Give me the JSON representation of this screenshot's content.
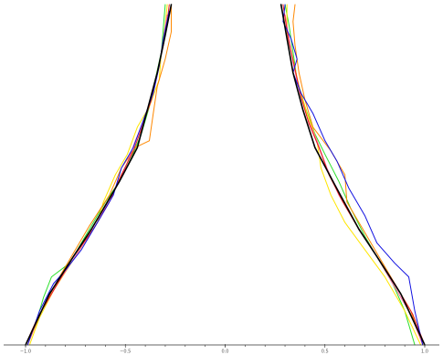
{
  "chart_data": {
    "type": "line",
    "title": "",
    "xlabel": "",
    "ylabel": "",
    "xlim": [
      -1.0,
      1.0
    ],
    "ylim": [
      0,
      1
    ],
    "y_axis_visible": false,
    "grid": false,
    "legend": "none",
    "x_ticks": [
      {
        "value": -1.0,
        "label": "−1.0"
      },
      {
        "value": -0.5,
        "label": "−0.5"
      },
      {
        "value": 0.0,
        "label": "0.0"
      },
      {
        "value": 0.5,
        "label": "0.5"
      },
      {
        "value": 1.0,
        "label": "1.0"
      }
    ],
    "series": [
      {
        "color": "#2ee02e",
        "left": [
          [
            -0.99,
            0
          ],
          [
            -0.95,
            0.06
          ],
          [
            -0.91,
            0.14
          ],
          [
            -0.87,
            0.2
          ],
          [
            -0.78,
            0.24
          ],
          [
            -0.72,
            0.3
          ],
          [
            -0.66,
            0.36
          ],
          [
            -0.6,
            0.42
          ],
          [
            -0.53,
            0.48
          ],
          [
            -0.47,
            0.55
          ],
          [
            -0.42,
            0.62
          ],
          [
            -0.38,
            0.7
          ],
          [
            -0.35,
            0.78
          ],
          [
            -0.32,
            0.86
          ],
          [
            -0.31,
            0.93
          ],
          [
            -0.3,
            1.0
          ]
        ],
        "right": [
          [
            0.95,
            0
          ],
          [
            0.9,
            0.1
          ],
          [
            0.84,
            0.18
          ],
          [
            0.78,
            0.24
          ],
          [
            0.7,
            0.32
          ],
          [
            0.63,
            0.4
          ],
          [
            0.57,
            0.48
          ],
          [
            0.5,
            0.56
          ],
          [
            0.45,
            0.62
          ],
          [
            0.4,
            0.7
          ],
          [
            0.36,
            0.78
          ],
          [
            0.34,
            0.86
          ],
          [
            0.32,
            0.94
          ],
          [
            0.3,
            1.0
          ]
        ]
      },
      {
        "color": "#ffe600",
        "left": [
          [
            -0.98,
            0
          ],
          [
            -0.93,
            0.08
          ],
          [
            -0.86,
            0.16
          ],
          [
            -0.75,
            0.26
          ],
          [
            -0.64,
            0.36
          ],
          [
            -0.61,
            0.42
          ],
          [
            -0.55,
            0.5
          ],
          [
            -0.49,
            0.56
          ],
          [
            -0.44,
            0.64
          ],
          [
            -0.38,
            0.7
          ],
          [
            -0.33,
            0.78
          ],
          [
            -0.32,
            0.86
          ],
          [
            -0.3,
            0.94
          ],
          [
            -0.29,
            1.0
          ]
        ],
        "right": [
          [
            0.98,
            0
          ],
          [
            0.9,
            0.1
          ],
          [
            0.8,
            0.2
          ],
          [
            0.7,
            0.28
          ],
          [
            0.6,
            0.36
          ],
          [
            0.53,
            0.44
          ],
          [
            0.48,
            0.52
          ],
          [
            0.46,
            0.6
          ],
          [
            0.41,
            0.68
          ],
          [
            0.37,
            0.76
          ],
          [
            0.34,
            0.84
          ],
          [
            0.31,
            0.92
          ],
          [
            0.31,
            1.0
          ]
        ]
      },
      {
        "color": "#ff8800",
        "left": [
          [
            -0.99,
            0
          ],
          [
            -0.92,
            0.1
          ],
          [
            -0.84,
            0.19
          ],
          [
            -0.76,
            0.27
          ],
          [
            -0.68,
            0.35
          ],
          [
            -0.58,
            0.44
          ],
          [
            -0.52,
            0.52
          ],
          [
            -0.45,
            0.58
          ],
          [
            -0.38,
            0.6
          ],
          [
            -0.36,
            0.68
          ],
          [
            -0.34,
            0.76
          ],
          [
            -0.3,
            0.84
          ],
          [
            -0.27,
            0.92
          ],
          [
            -0.27,
            1.0
          ]
        ],
        "right": [
          [
            0.99,
            0
          ],
          [
            0.93,
            0.1
          ],
          [
            0.85,
            0.18
          ],
          [
            0.77,
            0.26
          ],
          [
            0.69,
            0.34
          ],
          [
            0.61,
            0.42
          ],
          [
            0.6,
            0.5
          ],
          [
            0.53,
            0.57
          ],
          [
            0.44,
            0.64
          ],
          [
            0.4,
            0.72
          ],
          [
            0.37,
            0.8
          ],
          [
            0.35,
            0.88
          ],
          [
            0.34,
            0.95
          ],
          [
            0.35,
            1.0
          ]
        ]
      },
      {
        "color": "#ff66a0",
        "left": [
          [
            -0.99,
            0
          ],
          [
            -0.93,
            0.09
          ],
          [
            -0.84,
            0.18
          ],
          [
            -0.74,
            0.27
          ],
          [
            -0.64,
            0.36
          ],
          [
            -0.57,
            0.44
          ],
          [
            -0.5,
            0.52
          ],
          [
            -0.45,
            0.6
          ],
          [
            -0.4,
            0.67
          ],
          [
            -0.36,
            0.74
          ],
          [
            -0.33,
            0.82
          ],
          [
            -0.31,
            0.9
          ],
          [
            -0.29,
            0.97
          ]
        ],
        "right": [
          [
            0.99,
            0
          ],
          [
            0.93,
            0.09
          ],
          [
            0.84,
            0.18
          ],
          [
            0.75,
            0.27
          ],
          [
            0.65,
            0.36
          ],
          [
            0.57,
            0.44
          ],
          [
            0.51,
            0.52
          ],
          [
            0.46,
            0.6
          ],
          [
            0.41,
            0.67
          ],
          [
            0.37,
            0.75
          ],
          [
            0.34,
            0.83
          ],
          [
            0.32,
            0.9
          ],
          [
            0.3,
            0.97
          ]
        ]
      },
      {
        "color": "#e81e1e",
        "left": [
          [
            -1.0,
            0
          ],
          [
            -0.94,
            0.08
          ],
          [
            -0.85,
            0.17
          ],
          [
            -0.76,
            0.26
          ],
          [
            -0.66,
            0.34
          ],
          [
            -0.58,
            0.42
          ],
          [
            -0.52,
            0.5
          ],
          [
            -0.46,
            0.57
          ],
          [
            -0.41,
            0.65
          ],
          [
            -0.37,
            0.72
          ],
          [
            -0.34,
            0.8
          ],
          [
            -0.31,
            0.88
          ],
          [
            -0.29,
            0.95
          ],
          [
            -0.28,
            1.0
          ]
        ],
        "right": [
          [
            1.0,
            0
          ],
          [
            0.94,
            0.09
          ],
          [
            0.85,
            0.18
          ],
          [
            0.76,
            0.26
          ],
          [
            0.67,
            0.34
          ],
          [
            0.59,
            0.42
          ],
          [
            0.52,
            0.5
          ],
          [
            0.47,
            0.58
          ],
          [
            0.42,
            0.65
          ],
          [
            0.38,
            0.73
          ],
          [
            0.35,
            0.81
          ],
          [
            0.32,
            0.89
          ],
          [
            0.3,
            0.96
          ],
          [
            0.29,
            1.0
          ]
        ]
      },
      {
        "color": "#1010e0",
        "left": [
          [
            -0.99,
            0
          ],
          [
            -0.93,
            0.1
          ],
          [
            -0.86,
            0.18
          ],
          [
            -0.8,
            0.22
          ],
          [
            -0.72,
            0.28
          ],
          [
            -0.64,
            0.36
          ],
          [
            -0.56,
            0.44
          ],
          [
            -0.52,
            0.52
          ],
          [
            -0.46,
            0.58
          ],
          [
            -0.41,
            0.66
          ],
          [
            -0.36,
            0.74
          ],
          [
            -0.33,
            0.82
          ],
          [
            -0.31,
            0.9
          ],
          [
            -0.28,
            0.98
          ]
        ],
        "right": [
          [
            0.99,
            0
          ],
          [
            0.95,
            0.1
          ],
          [
            0.92,
            0.2
          ],
          [
            0.85,
            0.24
          ],
          [
            0.76,
            0.3
          ],
          [
            0.7,
            0.38
          ],
          [
            0.62,
            0.46
          ],
          [
            0.56,
            0.54
          ],
          [
            0.5,
            0.6
          ],
          [
            0.44,
            0.68
          ],
          [
            0.38,
            0.74
          ],
          [
            0.34,
            0.8
          ],
          [
            0.36,
            0.84
          ],
          [
            0.33,
            0.9
          ],
          [
            0.29,
            0.95
          ],
          [
            0.3,
            1.0
          ]
        ]
      },
      {
        "color": "#000000",
        "emphasis": true,
        "left": [
          [
            -1.0,
            0
          ],
          [
            -0.88,
            0.15
          ],
          [
            -0.76,
            0.26
          ],
          [
            -0.67,
            0.34
          ],
          [
            -0.53,
            0.48
          ],
          [
            -0.44,
            0.58
          ],
          [
            -0.39,
            0.69
          ],
          [
            -0.34,
            0.8
          ],
          [
            -0.3,
            0.91
          ],
          [
            -0.27,
            1.0
          ]
        ],
        "right": [
          [
            1.0,
            0
          ],
          [
            0.88,
            0.15
          ],
          [
            0.76,
            0.26
          ],
          [
            0.67,
            0.34
          ],
          [
            0.55,
            0.47
          ],
          [
            0.45,
            0.58
          ],
          [
            0.39,
            0.69
          ],
          [
            0.34,
            0.8
          ],
          [
            0.31,
            0.9
          ],
          [
            0.28,
            1.0
          ]
        ]
      }
    ]
  }
}
